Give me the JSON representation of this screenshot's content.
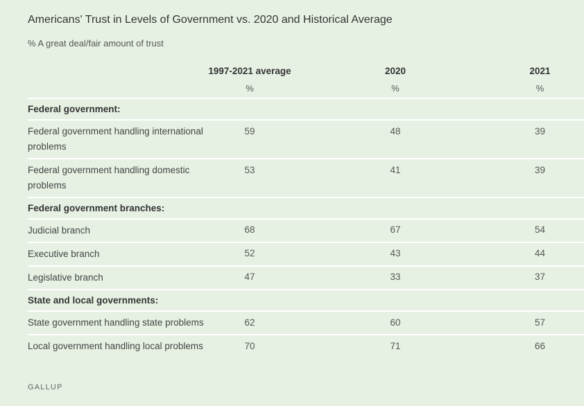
{
  "chart_data": {
    "type": "table",
    "title": "Americans' Trust in Levels of Government vs. 2020 and Historical Average",
    "subtitle": "% A great deal/fair amount of trust",
    "columns": [
      "1997-2021 average",
      "2020",
      "2021"
    ],
    "units": [
      "%",
      "%",
      "%"
    ],
    "sections": [
      {
        "heading": "Federal government:",
        "rows": [
          {
            "label": "Federal government handling international problems",
            "values": [
              "59",
              "48",
              "39"
            ]
          },
          {
            "label": "Federal government handling domestic problems",
            "values": [
              "53",
              "41",
              "39"
            ]
          }
        ]
      },
      {
        "heading": "Federal government branches:",
        "rows": [
          {
            "label": "Judicial branch",
            "values": [
              "68",
              "67",
              "54"
            ]
          },
          {
            "label": "Executive branch",
            "values": [
              "52",
              "43",
              "44"
            ]
          },
          {
            "label": "Legislative branch",
            "values": [
              "47",
              "33",
              "37"
            ]
          }
        ]
      },
      {
        "heading": "State and local governments:",
        "rows": [
          {
            "label": "State government handling state problems",
            "values": [
              "62",
              "60",
              "57"
            ]
          },
          {
            "label": "Local government handling local problems",
            "values": [
              "70",
              "71",
              "66"
            ]
          }
        ]
      }
    ],
    "source": "GALLUP"
  }
}
